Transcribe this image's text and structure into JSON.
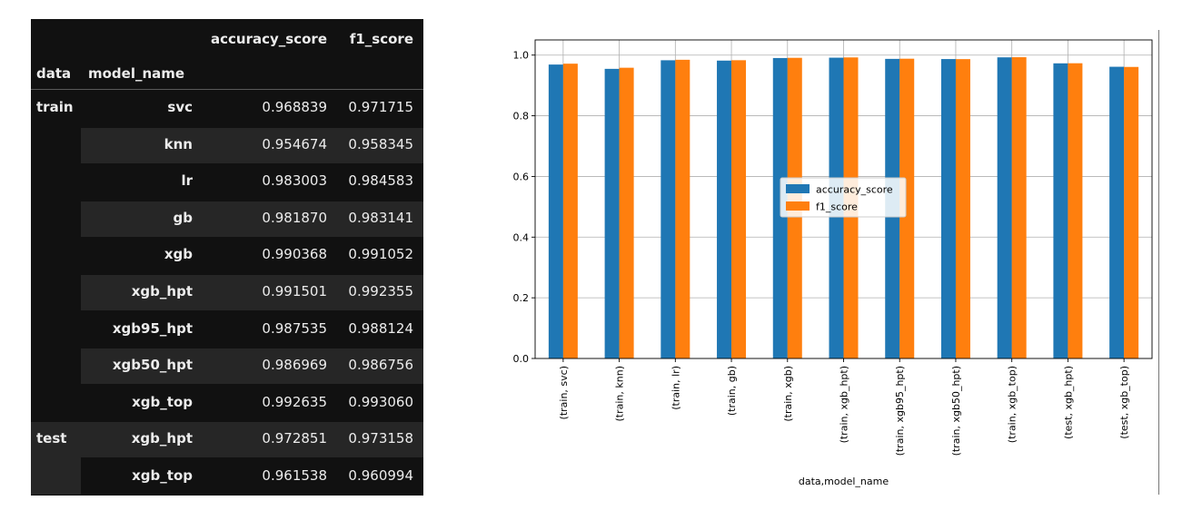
{
  "table": {
    "columns": [
      "accuracy_score",
      "f1_score"
    ],
    "index_names": [
      "data",
      "model_name"
    ],
    "rows": [
      {
        "data": "train",
        "model": "svc",
        "accuracy": "0.968839",
        "f1": "0.971715"
      },
      {
        "data": "",
        "model": "knn",
        "accuracy": "0.954674",
        "f1": "0.958345"
      },
      {
        "data": "",
        "model": "lr",
        "accuracy": "0.983003",
        "f1": "0.984583"
      },
      {
        "data": "",
        "model": "gb",
        "accuracy": "0.981870",
        "f1": "0.983141"
      },
      {
        "data": "",
        "model": "xgb",
        "accuracy": "0.990368",
        "f1": "0.991052"
      },
      {
        "data": "",
        "model": "xgb_hpt",
        "accuracy": "0.991501",
        "f1": "0.992355"
      },
      {
        "data": "",
        "model": "xgb95_hpt",
        "accuracy": "0.987535",
        "f1": "0.988124"
      },
      {
        "data": "",
        "model": "xgb50_hpt",
        "accuracy": "0.986969",
        "f1": "0.986756"
      },
      {
        "data": "",
        "model": "xgb_top",
        "accuracy": "0.992635",
        "f1": "0.993060"
      },
      {
        "data": "test",
        "model": "xgb_hpt",
        "accuracy": "0.972851",
        "f1": "0.973158"
      },
      {
        "data": "",
        "model": "xgb_top",
        "accuracy": "0.961538",
        "f1": "0.960994"
      }
    ]
  },
  "chart_data": {
    "type": "bar",
    "categories": [
      "(train, svc)",
      "(train, knn)",
      "(train, lr)",
      "(train, gb)",
      "(train, xgb)",
      "(train, xgb_hpt)",
      "(train, xgb95_hpt)",
      "(train, xgb50_hpt)",
      "(train, xgb_top)",
      "(test, xgb_hpt)",
      "(test, xgb_top)"
    ],
    "series": [
      {
        "name": "accuracy_score",
        "color": "#1f77b4",
        "values": [
          0.968839,
          0.954674,
          0.983003,
          0.98187,
          0.990368,
          0.991501,
          0.987535,
          0.986969,
          0.992635,
          0.972851,
          0.961538
        ]
      },
      {
        "name": "f1_score",
        "color": "#ff7f0e",
        "values": [
          0.971715,
          0.958345,
          0.984583,
          0.983141,
          0.991052,
          0.992355,
          0.988124,
          0.986756,
          0.99306,
          0.973158,
          0.960994
        ]
      }
    ],
    "xlabel": "data,model_name",
    "ylabel": "",
    "ylim": [
      0,
      1.05
    ],
    "yticks": [
      0.0,
      0.2,
      0.4,
      0.6,
      0.8,
      1.0
    ],
    "ytick_labels": [
      "0.0",
      "0.2",
      "0.4",
      "0.6",
      "0.8",
      "1.0"
    ],
    "grid": true,
    "legend_position": "center"
  }
}
